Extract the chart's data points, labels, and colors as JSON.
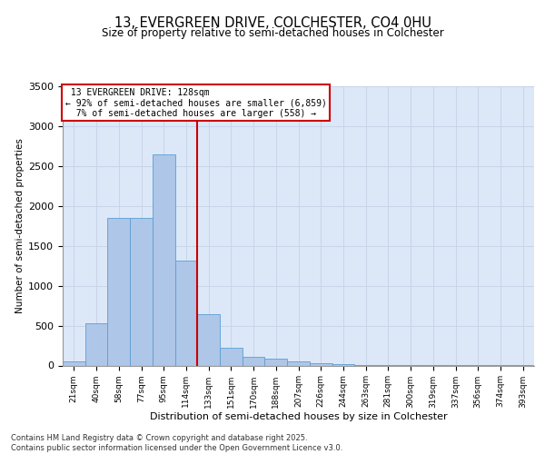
{
  "title_line1": "13, EVERGREEN DRIVE, COLCHESTER, CO4 0HU",
  "title_line2": "Size of property relative to semi-detached houses in Colchester",
  "xlabel": "Distribution of semi-detached houses by size in Colchester",
  "ylabel": "Number of semi-detached properties",
  "bar_labels": [
    "21sqm",
    "40sqm",
    "58sqm",
    "77sqm",
    "95sqm",
    "114sqm",
    "133sqm",
    "151sqm",
    "170sqm",
    "188sqm",
    "207sqm",
    "226sqm",
    "244sqm",
    "263sqm",
    "281sqm",
    "300sqm",
    "319sqm",
    "337sqm",
    "356sqm",
    "374sqm",
    "393sqm"
  ],
  "bar_values": [
    55,
    530,
    1850,
    1850,
    2650,
    1310,
    645,
    225,
    105,
    90,
    50,
    25,
    20,
    10,
    5,
    5,
    2,
    2,
    1,
    1,
    1
  ],
  "bar_color": "#aec6e8",
  "bar_edgecolor": "#5a9fd4",
  "property_label": "13 EVERGREEN DRIVE: 128sqm",
  "pct_smaller": 92,
  "n_smaller": 6859,
  "pct_larger": 7,
  "n_larger": 558,
  "vline_color": "#cc0000",
  "annotation_box_color": "#cc0000",
  "ylim": [
    0,
    3500
  ],
  "yticks": [
    0,
    500,
    1000,
    1500,
    2000,
    2500,
    3000,
    3500
  ],
  "grid_color": "#c8d4e8",
  "bg_color": "#dce8f8",
  "footnote": "Contains HM Land Registry data © Crown copyright and database right 2025.\nContains public sector information licensed under the Open Government Licence v3.0."
}
